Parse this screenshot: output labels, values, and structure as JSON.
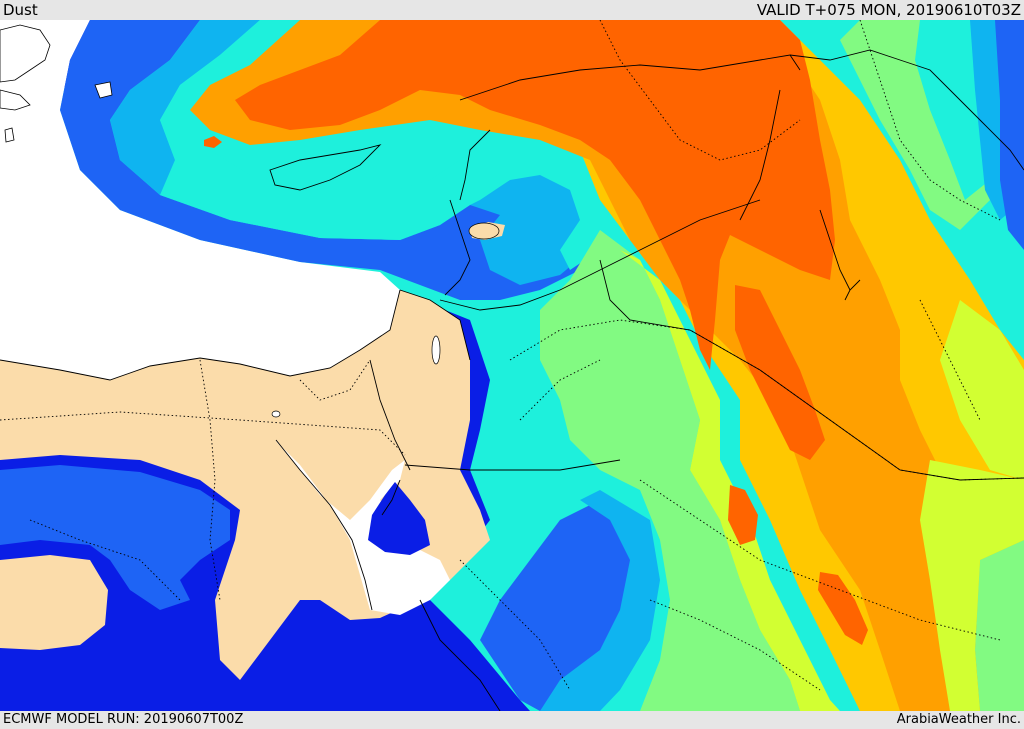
{
  "header": {
    "title": "Dust",
    "valid": "VALID T+075 MON, 20190610T03Z"
  },
  "footer": {
    "model_run": "ECMWF MODEL RUN: 20190607T00Z",
    "credit": "ArabiaWeather Inc."
  },
  "map": {
    "field": "dust concentration",
    "colors": {
      "sea": "#ffffff",
      "land": "#fbdcaa",
      "level1_dark_blue": "#0a1ee6",
      "level2_blue": "#1e64f5",
      "level3_sky": "#0fb4f0",
      "level4_cyan": "#1ef0dc",
      "level5_green": "#82fa82",
      "level6_yellow": "#d2ff32",
      "level7_gold": "#ffc800",
      "level8_orange": "#ffa000",
      "level9_red_orange": "#ff6400"
    }
  }
}
